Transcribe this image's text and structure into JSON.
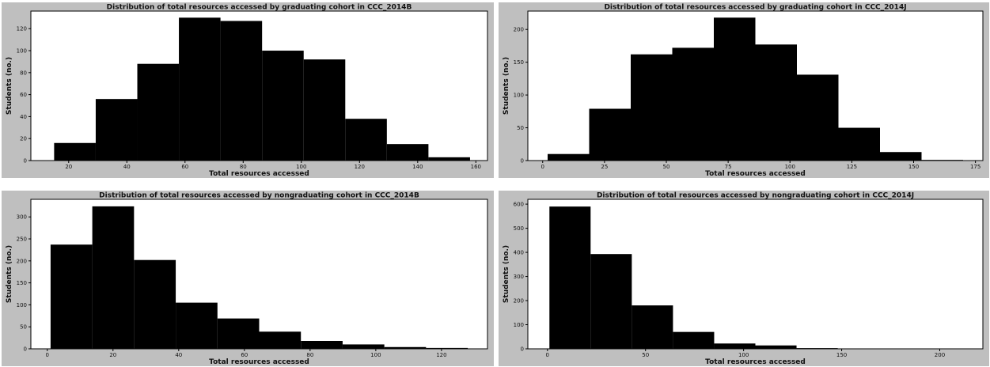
{
  "colors": {
    "panel_background": "#bfbfbf",
    "plot_background": "#ffffff",
    "bar_fill": "#000000",
    "text": "#111111"
  },
  "chart_data": [
    {
      "type": "bar",
      "title": "Distribution of total resources accessed by graduating cohort in CCC_2014B",
      "xlabel": "Total resources accessed",
      "ylabel": "Students (no.)",
      "bin_edges": [
        15,
        29.3,
        43.6,
        57.9,
        72.2,
        86.5,
        100.8,
        115.1,
        129.4,
        143.7,
        158
      ],
      "values": [
        16,
        56,
        88,
        130,
        127,
        100,
        92,
        38,
        15,
        3
      ],
      "xlim": [
        7,
        164
      ],
      "ylim": [
        0,
        136
      ],
      "xticks": [
        20,
        40,
        60,
        80,
        100,
        120,
        140,
        160
      ],
      "yticks": [
        0,
        20,
        40,
        60,
        80,
        100,
        120
      ],
      "grid": false,
      "legend": "none"
    },
    {
      "type": "bar",
      "title": "Distribution of total resources accessed by graduating cohort in CCC_2014J",
      "xlabel": "Total resources accessed",
      "ylabel": "Students (no.)",
      "bin_edges": [
        2,
        18.8,
        35.6,
        52.4,
        69.2,
        86,
        102.8,
        119.6,
        136.4,
        153.2,
        170
      ],
      "values": [
        10,
        79,
        162,
        172,
        218,
        177,
        131,
        50,
        13,
        1
      ],
      "xlim": [
        -6,
        178
      ],
      "ylim": [
        0,
        228
      ],
      "xticks": [
        0,
        25,
        50,
        75,
        100,
        125,
        150,
        175
      ],
      "yticks": [
        0,
        50,
        100,
        150,
        200
      ],
      "grid": false,
      "legend": "none"
    },
    {
      "type": "bar",
      "title": "Distribution of total resources accessed by nongraduating cohort in CCC_2014B",
      "xlabel": "Total resources accessed",
      "ylabel": "Students (no.)",
      "bin_edges": [
        1,
        13.7,
        26.4,
        39.1,
        51.8,
        64.5,
        77.2,
        89.9,
        102.6,
        115.3,
        128
      ],
      "values": [
        237,
        324,
        202,
        105,
        69,
        39,
        18,
        10,
        4,
        2
      ],
      "xlim": [
        -5,
        134
      ],
      "ylim": [
        0,
        340
      ],
      "xticks": [
        0,
        20,
        40,
        60,
        80,
        100,
        120
      ],
      "yticks": [
        0,
        50,
        100,
        150,
        200,
        250,
        300
      ],
      "grid": false,
      "legend": "none"
    },
    {
      "type": "bar",
      "title": "Distribution of total resources accessed by nongraduating cohort in CCC_2014J",
      "xlabel": "Total resources accessed",
      "ylabel": "Students (no.)",
      "bin_edges": [
        1,
        22,
        43,
        64,
        85,
        106,
        127,
        148,
        169,
        190,
        211
      ],
      "values": [
        590,
        393,
        180,
        70,
        22,
        14,
        3,
        1,
        0,
        1
      ],
      "xlim": [
        -10,
        222
      ],
      "ylim": [
        0,
        620
      ],
      "xticks": [
        0,
        50,
        100,
        150,
        200
      ],
      "yticks": [
        0,
        100,
        200,
        300,
        400,
        500,
        600
      ],
      "grid": false,
      "legend": "none"
    }
  ]
}
